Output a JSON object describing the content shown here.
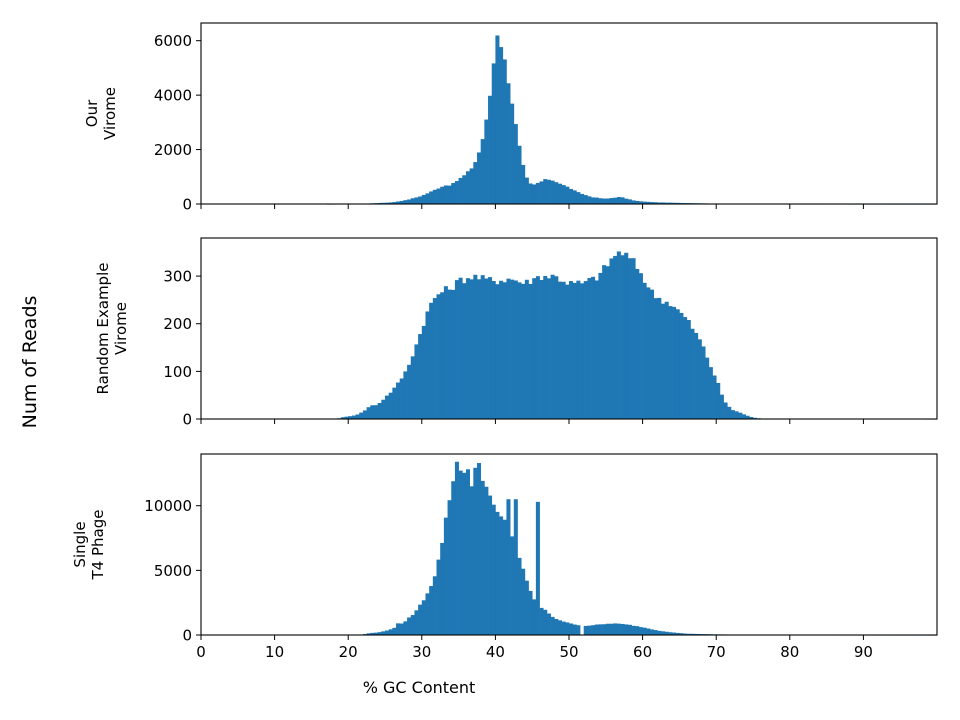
{
  "figure": {
    "ylabel": "Num of Reads",
    "xlabel": "% GC Content"
  },
  "chart_data": [
    {
      "type": "bar",
      "subtype": "histogram",
      "panel": "top",
      "ylabel": "Our\nVirome",
      "bin_start": 0,
      "bin_width": 0.5,
      "xlim": [
        0,
        100
      ],
      "ylim": [
        0,
        6650
      ],
      "xticks": [
        0,
        10,
        20,
        30,
        40,
        50,
        60,
        70,
        80,
        90
      ],
      "yticks": [
        0,
        2000,
        4000,
        6000
      ],
      "color": "#1f77b4",
      "anchors": [
        [
          0,
          0
        ],
        [
          17,
          0
        ],
        [
          22,
          10
        ],
        [
          26,
          60
        ],
        [
          28,
          150
        ],
        [
          30,
          300
        ],
        [
          32,
          550
        ],
        [
          33,
          680
        ],
        [
          34,
          700
        ],
        [
          35,
          900
        ],
        [
          36,
          1100
        ],
        [
          37,
          1400
        ],
        [
          37.5,
          1700
        ],
        [
          38,
          2100
        ],
        [
          38.5,
          2700
        ],
        [
          39,
          3400
        ],
        [
          39.5,
          4600
        ],
        [
          40,
          5800
        ],
        [
          40.25,
          6300
        ],
        [
          40.5,
          6150
        ],
        [
          41,
          5600
        ],
        [
          41.5,
          4900
        ],
        [
          42,
          4200
        ],
        [
          42.5,
          3300
        ],
        [
          43,
          2500
        ],
        [
          43.5,
          1700
        ],
        [
          44,
          1100
        ],
        [
          44.5,
          800
        ],
        [
          45,
          680
        ],
        [
          46,
          800
        ],
        [
          47,
          920
        ],
        [
          48,
          850
        ],
        [
          49,
          720
        ],
        [
          50,
          600
        ],
        [
          51,
          450
        ],
        [
          52,
          350
        ],
        [
          53,
          260
        ],
        [
          54,
          220
        ],
        [
          55,
          190
        ],
        [
          56,
          230
        ],
        [
          57,
          260
        ],
        [
          58,
          180
        ],
        [
          59,
          120
        ],
        [
          60,
          90
        ],
        [
          62,
          60
        ],
        [
          65,
          40
        ],
        [
          70,
          15
        ],
        [
          75,
          8
        ],
        [
          80,
          3
        ],
        [
          85,
          2
        ],
        [
          100,
          0
        ]
      ]
    },
    {
      "type": "bar",
      "subtype": "histogram",
      "panel": "middle",
      "ylabel": "Random Example\nVirome",
      "bin_start": 0,
      "bin_width": 0.5,
      "xlim": [
        0,
        100
      ],
      "ylim": [
        0,
        380
      ],
      "xticks": [
        0,
        10,
        20,
        30,
        40,
        50,
        60,
        70,
        80,
        90
      ],
      "yticks": [
        0,
        100,
        200,
        300
      ],
      "color": "#1f77b4",
      "anchors": [
        [
          0,
          0
        ],
        [
          18.5,
          0
        ],
        [
          19,
          3
        ],
        [
          21,
          8
        ],
        [
          22,
          15
        ],
        [
          23,
          28
        ],
        [
          24,
          30
        ],
        [
          25,
          45
        ],
        [
          26,
          60
        ],
        [
          27,
          80
        ],
        [
          28,
          105
        ],
        [
          29,
          145
        ],
        [
          30,
          190
        ],
        [
          31,
          235
        ],
        [
          32,
          260
        ],
        [
          33,
          270
        ],
        [
          34,
          275
        ],
        [
          35,
          290
        ],
        [
          36,
          295
        ],
        [
          37,
          300
        ],
        [
          38,
          295
        ],
        [
          40,
          290
        ],
        [
          42,
          295
        ],
        [
          44,
          285
        ],
        [
          46,
          300
        ],
        [
          48,
          300
        ],
        [
          50,
          285
        ],
        [
          52,
          285
        ],
        [
          54,
          300
        ],
        [
          56,
          340
        ],
        [
          57,
          352
        ],
        [
          58,
          340
        ],
        [
          59,
          325
        ],
        [
          60,
          300
        ],
        [
          61,
          270
        ],
        [
          62,
          255
        ],
        [
          64,
          240
        ],
        [
          66,
          210
        ],
        [
          68,
          160
        ],
        [
          69.5,
          100
        ],
        [
          70,
          85
        ],
        [
          71,
          40
        ],
        [
          72,
          20
        ],
        [
          73,
          15
        ],
        [
          74,
          8
        ],
        [
          75,
          3
        ],
        [
          76,
          1
        ],
        [
          80,
          1
        ],
        [
          90,
          1
        ],
        [
          100,
          0
        ]
      ]
    },
    {
      "type": "bar",
      "subtype": "histogram",
      "panel": "bottom",
      "ylabel": "Single\nT4 Phage",
      "xlabel": "% GC Content",
      "bin_start": 0,
      "bin_width": 0.5,
      "xlim": [
        0,
        100
      ],
      "ylim": [
        0,
        14000
      ],
      "xticks": [
        0,
        10,
        20,
        30,
        40,
        50,
        60,
        70,
        80,
        90
      ],
      "yticks": [
        0,
        5000,
        10000
      ],
      "color": "#1f77b4",
      "anchors": [
        [
          0,
          0
        ],
        [
          21,
          0
        ],
        [
          22,
          50
        ],
        [
          23,
          150
        ],
        [
          24,
          200
        ],
        [
          25,
          300
        ],
        [
          26,
          500
        ],
        [
          27,
          750
        ],
        [
          28,
          1200
        ],
        [
          29,
          1700
        ],
        [
          30,
          2500
        ],
        [
          31,
          3500
        ],
        [
          32,
          5000
        ],
        [
          33,
          8000
        ],
        [
          34,
          11500
        ],
        [
          35,
          13200
        ],
        [
          36,
          12500
        ],
        [
          37,
          13300
        ],
        [
          38,
          12700
        ],
        [
          39,
          11000
        ],
        [
          40,
          9500
        ],
        [
          41,
          9000
        ],
        [
          42,
          8000
        ],
        [
          43,
          6500
        ],
        [
          44,
          4500
        ],
        [
          45,
          3000
        ],
        [
          46,
          2200
        ],
        [
          47,
          1800
        ],
        [
          48,
          1300
        ],
        [
          50,
          900
        ],
        [
          52,
          700
        ],
        [
          54,
          800
        ],
        [
          56,
          900
        ],
        [
          58,
          800
        ],
        [
          60,
          600
        ],
        [
          62,
          350
        ],
        [
          64,
          200
        ],
        [
          66,
          100
        ],
        [
          70,
          50
        ],
        [
          75,
          20
        ],
        [
          80,
          10
        ],
        [
          90,
          5
        ],
        [
          100,
          0
        ]
      ],
      "spikes": [
        [
          26.5,
          900
        ],
        [
          34.5,
          13400
        ],
        [
          36.5,
          11500
        ],
        [
          37.5,
          13300
        ],
        [
          41.5,
          10500
        ],
        [
          42.5,
          10500
        ],
        [
          45.5,
          10300
        ],
        [
          51.5,
          0
        ]
      ]
    }
  ]
}
